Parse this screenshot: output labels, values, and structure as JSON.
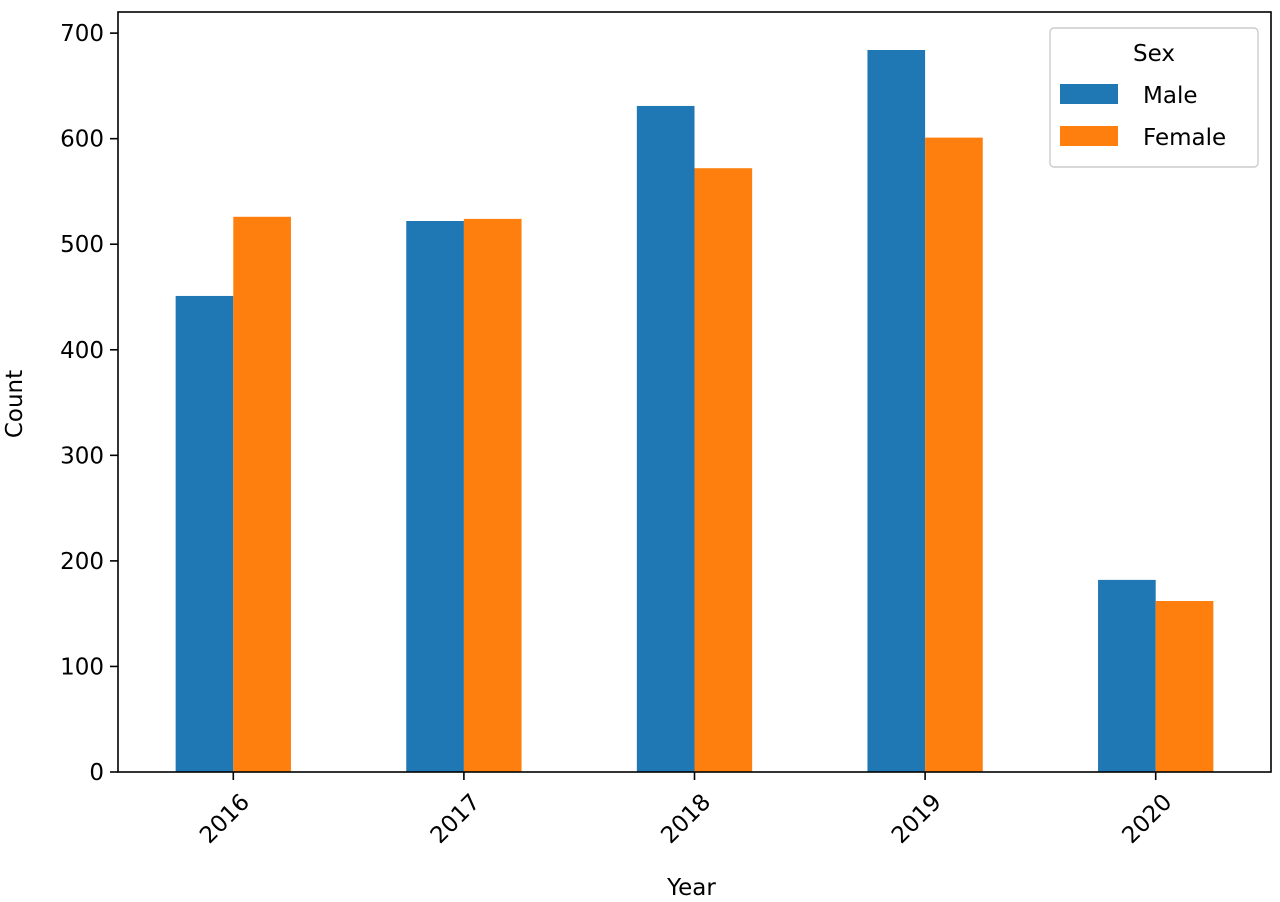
{
  "chart_data": {
    "type": "bar",
    "categories": [
      "2016",
      "2017",
      "2018",
      "2019",
      "2020"
    ],
    "series": [
      {
        "name": "Male",
        "color": "#1f77b4",
        "values": [
          451,
          522,
          631,
          684,
          182
        ]
      },
      {
        "name": "Female",
        "color": "#ff7f0e",
        "values": [
          526,
          524,
          572,
          601,
          162
        ]
      }
    ],
    "xlabel": "Year",
    "ylabel": "Count",
    "ylim": [
      0,
      720
    ],
    "yticks": [
      0,
      100,
      200,
      300,
      400,
      500,
      600,
      700
    ],
    "grid": false,
    "legend": {
      "title": "Sex",
      "position": "top-right"
    }
  }
}
